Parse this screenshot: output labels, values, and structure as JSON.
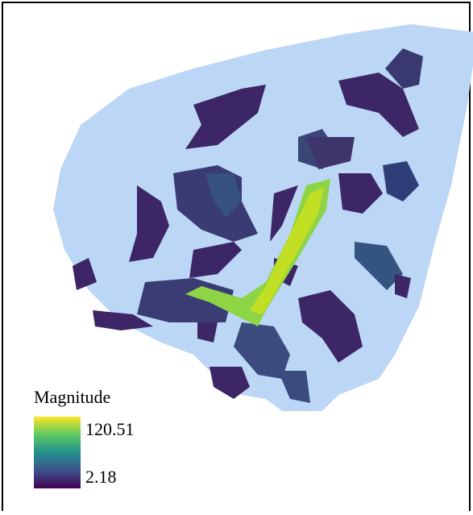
{
  "map": {
    "legend": {
      "title": "Magnitude",
      "max": 120.51,
      "min": 2.18
    }
  }
}
